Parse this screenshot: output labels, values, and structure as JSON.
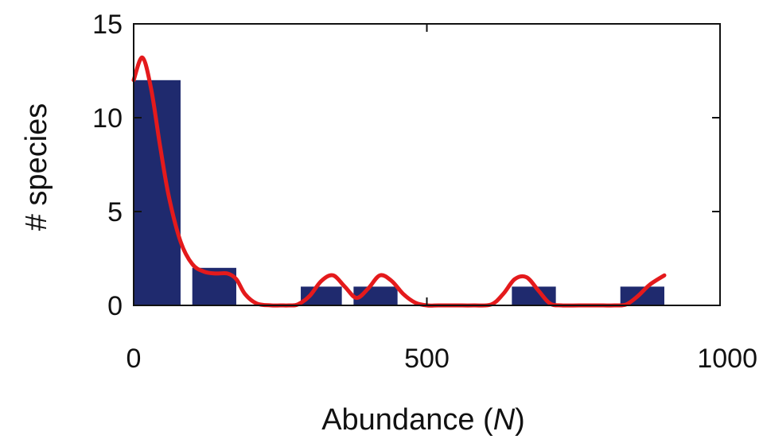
{
  "chart_data": {
    "type": "bar",
    "xlabel": "Abundance (",
    "xlabel_italic": "N",
    "xlabel_suffix": ")",
    "ylabel": "# species",
    "xlim": [
      0,
      1000
    ],
    "ylim": [
      0,
      15
    ],
    "xticks": [
      0,
      500,
      1000
    ],
    "yticks": [
      0,
      5,
      10,
      15
    ],
    "grid": false,
    "bars": [
      {
        "x0": 0,
        "x1": 80,
        "value": 12
      },
      {
        "x0": 100,
        "x1": 175,
        "value": 2
      },
      {
        "x0": 285,
        "x1": 355,
        "value": 1
      },
      {
        "x0": 375,
        "x1": 450,
        "value": 1
      },
      {
        "x0": 645,
        "x1": 720,
        "value": 1
      },
      {
        "x0": 830,
        "x1": 905,
        "value": 1
      }
    ],
    "series": [
      {
        "type": "line",
        "x": [
          0,
          15,
          30,
          45,
          60,
          80,
          100,
          120,
          140,
          160,
          175,
          190,
          210,
          235,
          250,
          265,
          280,
          300,
          320,
          340,
          360,
          380,
          400,
          420,
          440,
          460,
          480,
          500,
          520,
          550,
          580,
          610,
          630,
          650,
          670,
          690,
          710,
          730,
          760,
          790,
          820,
          840,
          860,
          880,
          905
        ],
        "y": [
          12.0,
          13.2,
          11.5,
          8.5,
          5.8,
          3.4,
          2.2,
          1.8,
          1.7,
          1.7,
          1.4,
          0.6,
          0.1,
          0.0,
          0.0,
          0.0,
          0.05,
          0.5,
          1.3,
          1.6,
          1.0,
          0.4,
          0.9,
          1.6,
          1.3,
          0.6,
          0.15,
          0.0,
          0.0,
          0.0,
          0.0,
          0.05,
          0.6,
          1.4,
          1.5,
          0.8,
          0.1,
          0.0,
          0.0,
          0.0,
          0.0,
          0.05,
          0.5,
          1.1,
          1.6
        ]
      }
    ],
    "colors": {
      "bar": "#1f2a6e",
      "line": "#e41a1c"
    }
  }
}
